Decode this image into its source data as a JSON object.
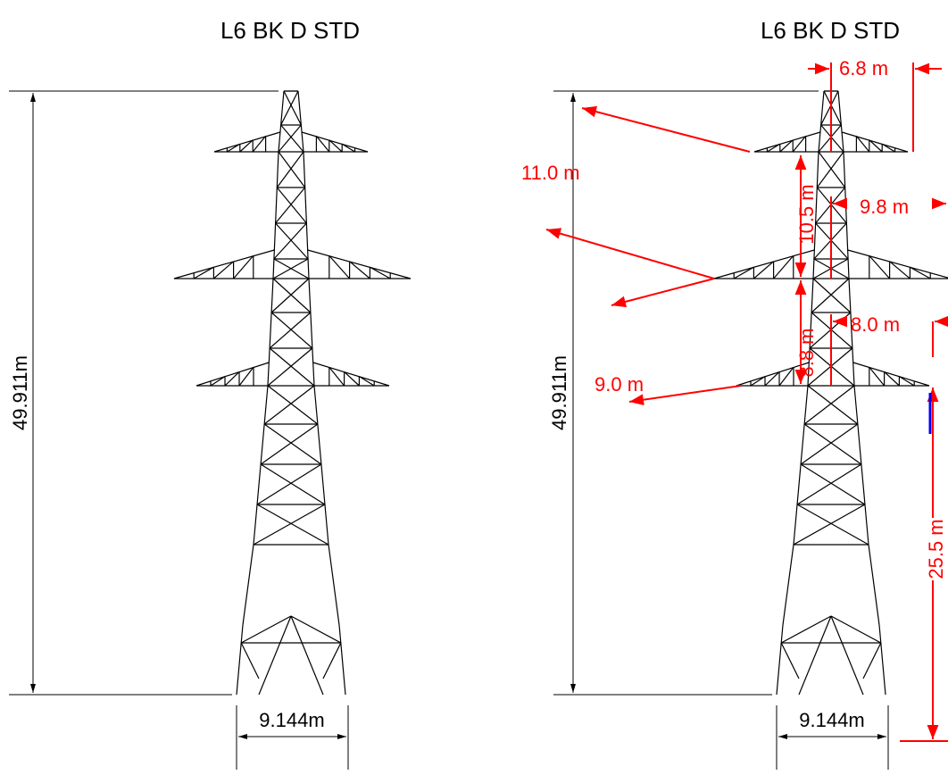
{
  "left": {
    "title": "L6 BK D STD",
    "height": "49.911m",
    "base_width": "9.144m"
  },
  "right": {
    "title": "L6 BK D STD",
    "height": "49.911m",
    "base_width": "9.144m",
    "dimensions": [
      "6.8 m",
      "11.0 m",
      "10.5 m",
      "9.8 m",
      "8.8 m",
      "8.0 m",
      "9.0 m",
      "25.5 m"
    ]
  }
}
